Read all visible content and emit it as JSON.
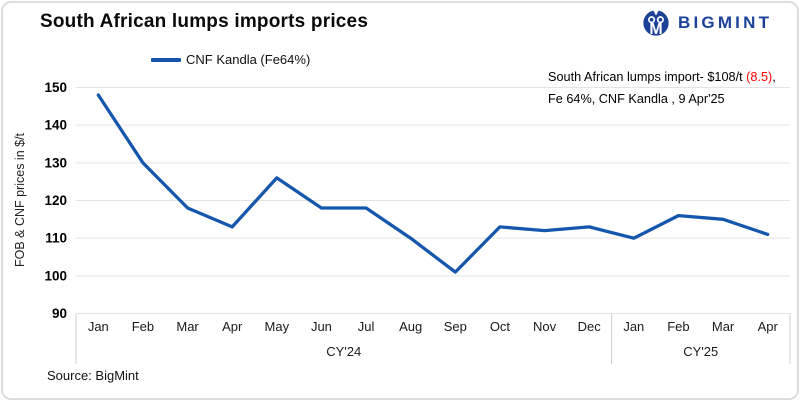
{
  "header": {
    "title": "South African lumps imports prices",
    "brand": {
      "name": "BIGMINT",
      "color": "#1b4298",
      "icon": "bigmint-logo-icon"
    }
  },
  "legend": {
    "label": "CNF Kandla (Fe64%)",
    "line_color": "#1557ad"
  },
  "annotation": {
    "line1_prefix": "South African lumps import- $108/t ",
    "line1_highlight": "(8.5)",
    "line1_suffix": ",",
    "line2": "Fe 64%, CNF Kandla , 9 Apr'25",
    "highlight_color": "#ff0000"
  },
  "source": "Source: BigMint",
  "chart_data": {
    "type": "line",
    "title": "South African lumps imports prices",
    "xlabel": "",
    "ylabel": "FOB & CNF prices in $/t",
    "ylim": [
      90,
      150
    ],
    "yticks": [
      90,
      100,
      110,
      120,
      130,
      140,
      150
    ],
    "grid": true,
    "legend_position": "top-left",
    "categories": [
      "Jan",
      "Feb",
      "Mar",
      "Apr",
      "May",
      "Jun",
      "Jul",
      "Aug",
      "Sep",
      "Oct",
      "Nov",
      "Dec",
      "Jan",
      "Feb",
      "Mar",
      "Apr"
    ],
    "category_groups": [
      {
        "label": "CY'24",
        "span": 12
      },
      {
        "label": "CY'25",
        "span": 4
      }
    ],
    "series": [
      {
        "name": "CNF Kandla (Fe64%)",
        "color": "#1557ad",
        "values": [
          148,
          130,
          118,
          113,
          126,
          118,
          118,
          110,
          101,
          113,
          112,
          113,
          110,
          116,
          115,
          111
        ]
      }
    ]
  },
  "style": {
    "gridline_color": "#e3e3e3",
    "axis_line_color": "#cfcfcf",
    "tick_label_color": "#000000",
    "month_label_color": "#1a1a1a"
  }
}
